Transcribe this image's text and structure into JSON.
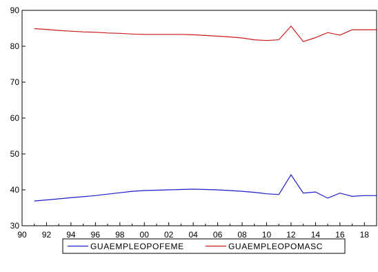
{
  "chart_data": {
    "type": "line",
    "title": "",
    "xlabel": "",
    "ylabel": "",
    "xlim": [
      1990,
      2019
    ],
    "ylim": [
      30,
      90
    ],
    "x_ticks": [
      {
        "value": 1990,
        "label": "90"
      },
      {
        "value": 1992,
        "label": "92"
      },
      {
        "value": 1994,
        "label": "94"
      },
      {
        "value": 1996,
        "label": "96"
      },
      {
        "value": 1998,
        "label": "98"
      },
      {
        "value": 2000,
        "label": "00"
      },
      {
        "value": 2002,
        "label": "02"
      },
      {
        "value": 2004,
        "label": "04"
      },
      {
        "value": 2006,
        "label": "06"
      },
      {
        "value": 2008,
        "label": "08"
      },
      {
        "value": 2010,
        "label": "10"
      },
      {
        "value": 2012,
        "label": "12"
      },
      {
        "value": 2014,
        "label": "14"
      },
      {
        "value": 2016,
        "label": "16"
      },
      {
        "value": 2018,
        "label": "18"
      }
    ],
    "y_ticks": [
      30,
      40,
      50,
      60,
      70,
      80,
      90
    ],
    "grid": false,
    "legend_position": "bottom",
    "series": [
      {
        "name": "GUAEMPLEOPOFEME",
        "color": "#1a1acc",
        "x": [
          1991,
          1992,
          1993,
          1994,
          1995,
          1996,
          1997,
          1998,
          1999,
          2000,
          2001,
          2002,
          2003,
          2004,
          2005,
          2006,
          2007,
          2008,
          2009,
          2010,
          2011,
          2012,
          2013,
          2014,
          2015,
          2016,
          2017,
          2018,
          2019
        ],
        "values": [
          36.9,
          37.2,
          37.5,
          37.8,
          38.1,
          38.4,
          38.8,
          39.2,
          39.6,
          39.8,
          39.9,
          40.0,
          40.1,
          40.2,
          40.1,
          40.0,
          39.8,
          39.6,
          39.3,
          38.9,
          38.7,
          44.2,
          39.1,
          39.4,
          37.7,
          39.1,
          38.2,
          38.4,
          38.4
        ]
      },
      {
        "name": "GUAEMPLEOPOMASC",
        "color": "#cc1a1a",
        "x": [
          1991,
          1992,
          1993,
          1994,
          1995,
          1996,
          1997,
          1998,
          1999,
          2000,
          2001,
          2002,
          2003,
          2004,
          2005,
          2006,
          2007,
          2008,
          2009,
          2010,
          2011,
          2012,
          2013,
          2014,
          2015,
          2016,
          2017,
          2018,
          2019
        ],
        "values": [
          84.9,
          84.7,
          84.4,
          84.2,
          84.0,
          83.9,
          83.7,
          83.6,
          83.4,
          83.3,
          83.3,
          83.3,
          83.3,
          83.2,
          83.0,
          82.8,
          82.6,
          82.3,
          81.8,
          81.6,
          81.8,
          85.6,
          81.3,
          82.4,
          83.8,
          83.1,
          84.6,
          84.6,
          84.6
        ]
      }
    ]
  }
}
